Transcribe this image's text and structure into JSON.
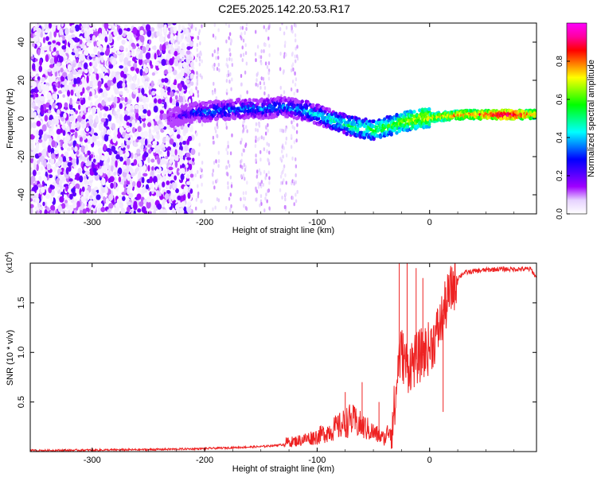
{
  "title": "C2E5.2025.142.20.53.R17",
  "chart_data": [
    {
      "type": "heatmap",
      "xlabel": "Height of straight line (km)",
      "ylabel": "Frequency (Hz)",
      "xlim": [
        -355,
        95
      ],
      "ylim": [
        -50,
        50
      ],
      "x_ticks": [
        "-300",
        "-200",
        "-100",
        "0"
      ],
      "x_tick_values": [
        -300,
        -200,
        -100,
        0
      ],
      "y_ticks": [
        "-40",
        "-20",
        "0",
        "20",
        "40"
      ],
      "y_tick_values": [
        -40,
        -20,
        0,
        20,
        40
      ],
      "colorbar": {
        "label": "Normalized spectral amplitude",
        "range": [
          0,
          1
        ],
        "ticks": [
          "0.0",
          "0.2",
          "0.4",
          "0.6",
          "0.8"
        ],
        "tick_values": [
          0.0,
          0.2,
          0.4,
          0.6,
          0.8
        ],
        "colors": [
          "#ffffff",
          "#e6d2ff",
          "#a000ff",
          "#5000ff",
          "#0000ff",
          "#0080ff",
          "#00ffff",
          "#00ff80",
          "#00ff00",
          "#80ff00",
          "#ffff00",
          "#ff8000",
          "#ff0000",
          "#ff00a0",
          "#ff00ff"
        ]
      },
      "ridge": {
        "x": [
          -230,
          -210,
          -190,
          -170,
          -150,
          -130,
          -110,
          -90,
          -70,
          -50,
          -30,
          -10,
          10,
          30,
          50,
          70,
          90
        ],
        "freq": [
          0,
          3,
          4,
          5,
          5,
          6,
          4,
          0,
          -4,
          -6,
          -3,
          0,
          1,
          2,
          2,
          2,
          2
        ],
        "amplitude": [
          0.15,
          0.3,
          0.35,
          0.35,
          0.35,
          0.35,
          0.4,
          0.45,
          0.5,
          0.55,
          0.6,
          0.7,
          0.75,
          0.8,
          0.85,
          0.95,
          0.8
        ]
      }
    },
    {
      "type": "line",
      "xlabel": "Height of straight line (km)",
      "ylabel": "SNR (10 * v/v)",
      "y_multiplier": "(x10",
      "y_exponent": "4",
      "xlim": [
        -355,
        95
      ],
      "ylim": [
        0,
        1.9
      ],
      "x_ticks": [
        "-300",
        "-200",
        "-100",
        "0"
      ],
      "x_tick_values": [
        -300,
        -200,
        -100,
        0
      ],
      "y_ticks": [
        "0.5",
        "1.0",
        "1.5"
      ],
      "y_tick_values": [
        0.5,
        1.0,
        1.5
      ],
      "color": "#ee2222",
      "series": [
        {
          "x": [
            -355,
            -300,
            -250,
            -200,
            -150,
            -120,
            -100,
            -80,
            -70,
            -60,
            -50,
            -40,
            -35,
            -30,
            -28,
            -25,
            -20,
            -15,
            -10,
            -5,
            0,
            5,
            10,
            15,
            20,
            25,
            30,
            40,
            50,
            60,
            70,
            80,
            90,
            95
          ],
          "values": [
            0.01,
            0.015,
            0.02,
            0.03,
            0.05,
            0.08,
            0.12,
            0.2,
            0.25,
            0.2,
            0.15,
            0.1,
            0.2,
            0.5,
            0.9,
            1.0,
            0.85,
            0.9,
            0.95,
            1.0,
            1.05,
            1.15,
            1.3,
            1.5,
            1.65,
            1.75,
            1.8,
            1.82,
            1.83,
            1.84,
            1.84,
            1.84,
            1.84,
            1.75
          ]
        }
      ],
      "spikes": [
        {
          "x": -27,
          "value": 1.9
        },
        {
          "x": -20,
          "value": 1.9
        },
        {
          "x": -12,
          "value": 1.85
        },
        {
          "x": -6,
          "value": 1.75
        },
        {
          "x": 12,
          "value": 0.4
        },
        {
          "x": -75,
          "value": 0.6
        },
        {
          "x": -60,
          "value": 0.7
        },
        {
          "x": -45,
          "value": 0.5
        }
      ]
    }
  ]
}
